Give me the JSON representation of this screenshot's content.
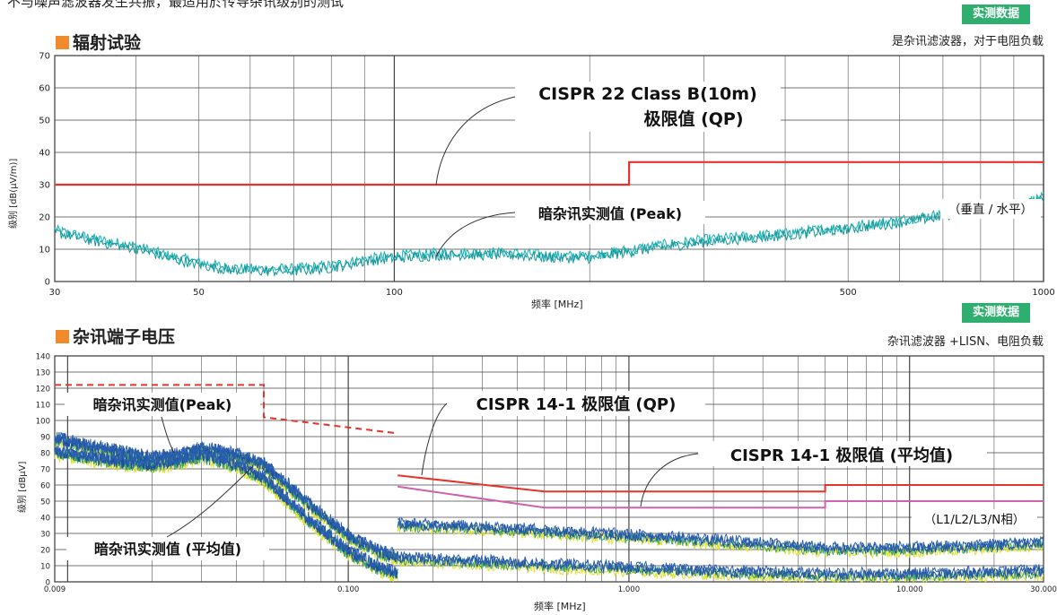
{
  "header": {
    "top_text": "不与噪声滤波器发生共振，最适用於传导杂讯级别的测试",
    "badge_label": "实测数据"
  },
  "colors": {
    "limit": "#e8322c",
    "avg_limit": "#d060b0",
    "radiated_noise": "#1fb4b8",
    "conducted_noise": "#1c4f9c",
    "conducted_noise_alt": "#e0e030",
    "badge": "#2eaf6f",
    "title_square": "#f08a2c"
  },
  "radiated": {
    "title": "辐射试验",
    "note": "是杂讯滤波器，对于电阻负载",
    "ylabel": "级别 [dB(μV/m)]",
    "xlabel": "频率 [MHz]",
    "ann_limit_1": "CISPR 22 Class B(10m)",
    "ann_limit_2": "极限值 (QP)",
    "ann_noise": "暗杂讯实测值 (Peak)",
    "ann_pol": "（垂直 / 水平）"
  },
  "conducted": {
    "title": "杂讯端子电压",
    "note": "杂讯滤波器 +LISN、电阻负载",
    "ylabel": "级别 [dBμV]",
    "xlabel": "频率 [MHz]",
    "ann_limit_qp": "CISPR 14-1 极限值 (QP)",
    "ann_limit_avg": "CISPR 14-1 极限值 (平均值)",
    "ann_peak": "暗杂讯实测值(Peak)",
    "ann_avg": "暗杂讯实测值 (平均值)",
    "ann_phase": "（L1/L2/L3/N相）"
  },
  "chart_data": [
    {
      "type": "line",
      "title": "辐射试验",
      "xlabel": "频率 [MHz]",
      "ylabel": "级别 [dB(μV/m)]",
      "x_scale": "log",
      "xlim": [
        30,
        1000
      ],
      "ylim": [
        0,
        70
      ],
      "x_ticks": [
        30,
        50,
        100,
        500,
        1000
      ],
      "x_tick_labels": [
        "30",
        "50",
        "100",
        "500",
        "1000"
      ],
      "y_ticks": [
        0,
        10,
        20,
        30,
        40,
        50,
        60,
        70
      ],
      "y_tick_labels": [
        "0",
        "10",
        "20",
        "30",
        "40",
        "50",
        "60",
        "70"
      ],
      "grid": true,
      "series": [
        {
          "name": "CISPR 22 Class B(10m) 极限值 (QP)",
          "x": [
            30,
            230,
            230,
            1000
          ],
          "y": [
            30,
            30,
            37,
            37
          ]
        },
        {
          "name": "暗杂讯实测值 (Peak)",
          "x": [
            30,
            35,
            40,
            45,
            50,
            55,
            60,
            70,
            80,
            90,
            100,
            120,
            150,
            180,
            200,
            250,
            300,
            400,
            500,
            600,
            700,
            800,
            900,
            1000
          ],
          "y": [
            16,
            13,
            11,
            8,
            6,
            4.5,
            4,
            4,
            5,
            7,
            8,
            9,
            9,
            8,
            8,
            11,
            13,
            15,
            17,
            19,
            21,
            23,
            24,
            26
          ]
        }
      ]
    },
    {
      "type": "line",
      "title": "杂讯端子电压",
      "xlabel": "频率 [MHz]",
      "ylabel": "级别 [dBμV]",
      "x_scale": "log",
      "xlim": [
        0.009,
        30
      ],
      "ylim": [
        0,
        140
      ],
      "x_ticks": [
        0.009,
        0.1,
        1,
        10,
        30
      ],
      "x_tick_labels": [
        "0.009",
        "0.100",
        "1.000",
        "10.000",
        "30.000"
      ],
      "y_ticks": [
        0,
        10,
        20,
        30,
        40,
        50,
        60,
        70,
        80,
        90,
        100,
        110,
        120,
        130,
        140
      ],
      "y_tick_labels": [
        "0",
        "10",
        "20",
        "30",
        "40",
        "50",
        "60",
        "70",
        "80",
        "90",
        "100",
        "110",
        "120",
        "130",
        "140"
      ],
      "grid": true,
      "series": [
        {
          "name": "CISPR 14-1 极限值 (QP) (低频, 虚线)",
          "x": [
            0.009,
            0.05,
            0.05,
            0.15
          ],
          "y": [
            122,
            122,
            102,
            92
          ]
        },
        {
          "name": "CISPR 14-1 极限值 (QP)",
          "x": [
            0.15,
            0.5,
            5,
            5,
            30
          ],
          "y": [
            66,
            56,
            56,
            60,
            60
          ]
        },
        {
          "name": "CISPR 14-1 极限值 (平均值)",
          "x": [
            0.15,
            0.5,
            5,
            5,
            30
          ],
          "y": [
            59,
            46,
            46,
            50,
            50
          ]
        },
        {
          "name": "暗杂讯实测值(Peak)",
          "x": [
            0.009,
            0.015,
            0.02,
            0.025,
            0.03,
            0.04,
            0.05,
            0.07,
            0.1,
            0.13,
            0.15,
            0.15,
            0.3,
            0.5,
            1,
            2,
            5,
            10,
            20,
            30
          ],
          "y": [
            88,
            80,
            76,
            78,
            82,
            78,
            72,
            50,
            28,
            18,
            15,
            35,
            33,
            31,
            28,
            25,
            20,
            20,
            22,
            24
          ]
        },
        {
          "name": "暗杂讯实测值 (平均值)",
          "x": [
            0.009,
            0.015,
            0.02,
            0.025,
            0.03,
            0.04,
            0.05,
            0.07,
            0.1,
            0.13,
            0.15,
            0.15,
            0.3,
            0.5,
            1,
            2,
            5,
            10,
            20,
            30
          ],
          "y": [
            80,
            74,
            72,
            74,
            78,
            72,
            64,
            40,
            18,
            8,
            4,
            14,
            12,
            10,
            8,
            6,
            4,
            4,
            5,
            6
          ]
        }
      ]
    }
  ]
}
